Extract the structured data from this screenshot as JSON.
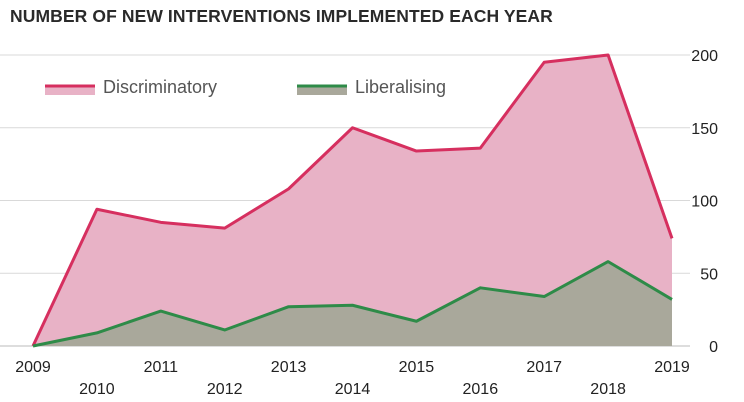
{
  "chart_data": {
    "type": "area",
    "title": "NUMBER OF NEW INTERVENTIONS IMPLEMENTED EACH YEAR",
    "xlabel": "",
    "ylabel": "",
    "x": [
      2009,
      2010,
      2011,
      2012,
      2013,
      2014,
      2015,
      2016,
      2017,
      2018,
      2019
    ],
    "series": [
      {
        "name": "Discriminatory",
        "values": [
          0,
          94,
          85,
          81,
          108,
          150,
          134,
          136,
          195,
          200,
          74
        ],
        "color": "#d62f5f",
        "fill": "#e8b2c6"
      },
      {
        "name": "Liberalising",
        "values": [
          0,
          9,
          24,
          11,
          27,
          28,
          17,
          40,
          34,
          58,
          32
        ],
        "color": "#2e8b48",
        "fill": "#a9a89b"
      }
    ],
    "ylim": [
      0,
      200
    ],
    "yticks": [
      0,
      50,
      100,
      150,
      200
    ],
    "y_axis_position": "right",
    "grid": true,
    "legend_position": "top-left"
  }
}
